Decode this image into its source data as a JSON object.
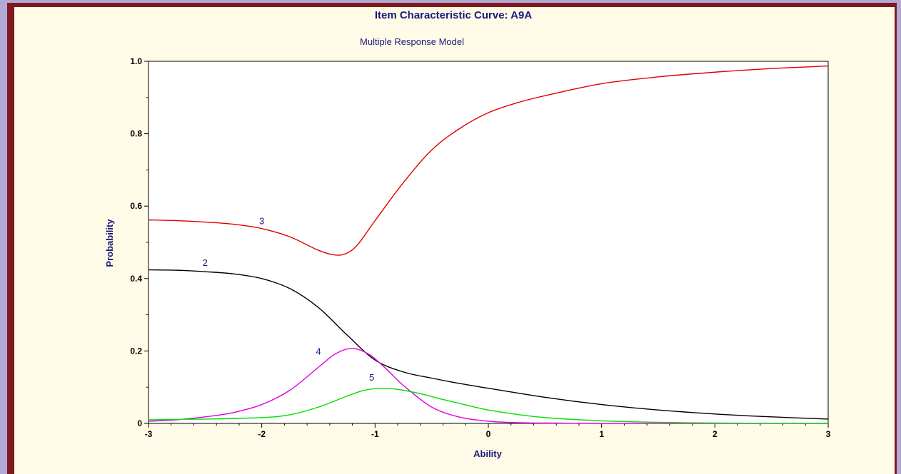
{
  "chart_data": {
    "type": "line",
    "title": "Item Characteristic Curve: A9A",
    "subtitle": "Multiple Response Model",
    "xlabel": "Ability",
    "ylabel": "Probability",
    "xlim": [
      -3,
      3
    ],
    "ylim": [
      0,
      1
    ],
    "xticks": [
      "-3",
      "-2",
      "-1",
      "0",
      "1",
      "2",
      "3"
    ],
    "yticks": [
      "0",
      "0.2",
      "0.4",
      "0.6",
      "0.8",
      "1.0"
    ],
    "grid": false,
    "series": [
      {
        "name": "3",
        "color": "#e00000",
        "label_at": [
          -2.0,
          0.55
        ],
        "x": [
          -3,
          -2.75,
          -2.5,
          -2.25,
          -2.0,
          -1.75,
          -1.5,
          -1.35,
          -1.25,
          -1.15,
          -1.0,
          -0.75,
          -0.5,
          -0.25,
          0,
          0.25,
          0.5,
          1.0,
          1.5,
          2.0,
          2.5,
          3.0
        ],
        "y": [
          0.562,
          0.56,
          0.556,
          0.55,
          0.538,
          0.515,
          0.478,
          0.465,
          0.47,
          0.495,
          0.56,
          0.665,
          0.755,
          0.815,
          0.858,
          0.885,
          0.905,
          0.938,
          0.957,
          0.97,
          0.98,
          0.987
        ]
      },
      {
        "name": "2",
        "color": "#000000",
        "label_at": [
          -2.5,
          0.435
        ],
        "x": [
          -3,
          -2.75,
          -2.5,
          -2.25,
          -2.0,
          -1.75,
          -1.5,
          -1.25,
          -1.0,
          -0.75,
          -0.5,
          -0.25,
          0,
          0.5,
          1.0,
          1.5,
          2.0,
          2.5,
          3.0
        ],
        "y": [
          0.424,
          0.423,
          0.419,
          0.413,
          0.4,
          0.372,
          0.32,
          0.245,
          0.175,
          0.142,
          0.125,
          0.11,
          0.097,
          0.072,
          0.052,
          0.037,
          0.026,
          0.018,
          0.012
        ]
      },
      {
        "name": "4",
        "color": "#e000e0",
        "label_at": [
          -1.5,
          0.19
        ],
        "x": [
          -3,
          -2.75,
          -2.5,
          -2.25,
          -2.0,
          -1.75,
          -1.5,
          -1.35,
          -1.2,
          -1.05,
          -0.9,
          -0.75,
          -0.5,
          -0.25,
          0,
          0.25,
          0.5,
          1.0,
          2.0,
          3.0
        ],
        "y": [
          0.006,
          0.01,
          0.018,
          0.03,
          0.052,
          0.092,
          0.155,
          0.192,
          0.207,
          0.19,
          0.15,
          0.105,
          0.045,
          0.017,
          0.006,
          0.002,
          0.001,
          0.0,
          0.0,
          0.0
        ]
      },
      {
        "name": "5",
        "color": "#00e000",
        "label_at": [
          -1.03,
          0.118
        ],
        "x": [
          -3,
          -2.5,
          -2.0,
          -1.75,
          -1.5,
          -1.25,
          -1.1,
          -0.95,
          -0.8,
          -0.6,
          -0.4,
          -0.2,
          0,
          0.25,
          0.5,
          1.0,
          1.5,
          2.0,
          3.0
        ],
        "y": [
          0.01,
          0.012,
          0.016,
          0.024,
          0.045,
          0.075,
          0.091,
          0.097,
          0.094,
          0.082,
          0.066,
          0.051,
          0.037,
          0.025,
          0.016,
          0.007,
          0.003,
          0.001,
          0.0
        ]
      }
    ]
  }
}
